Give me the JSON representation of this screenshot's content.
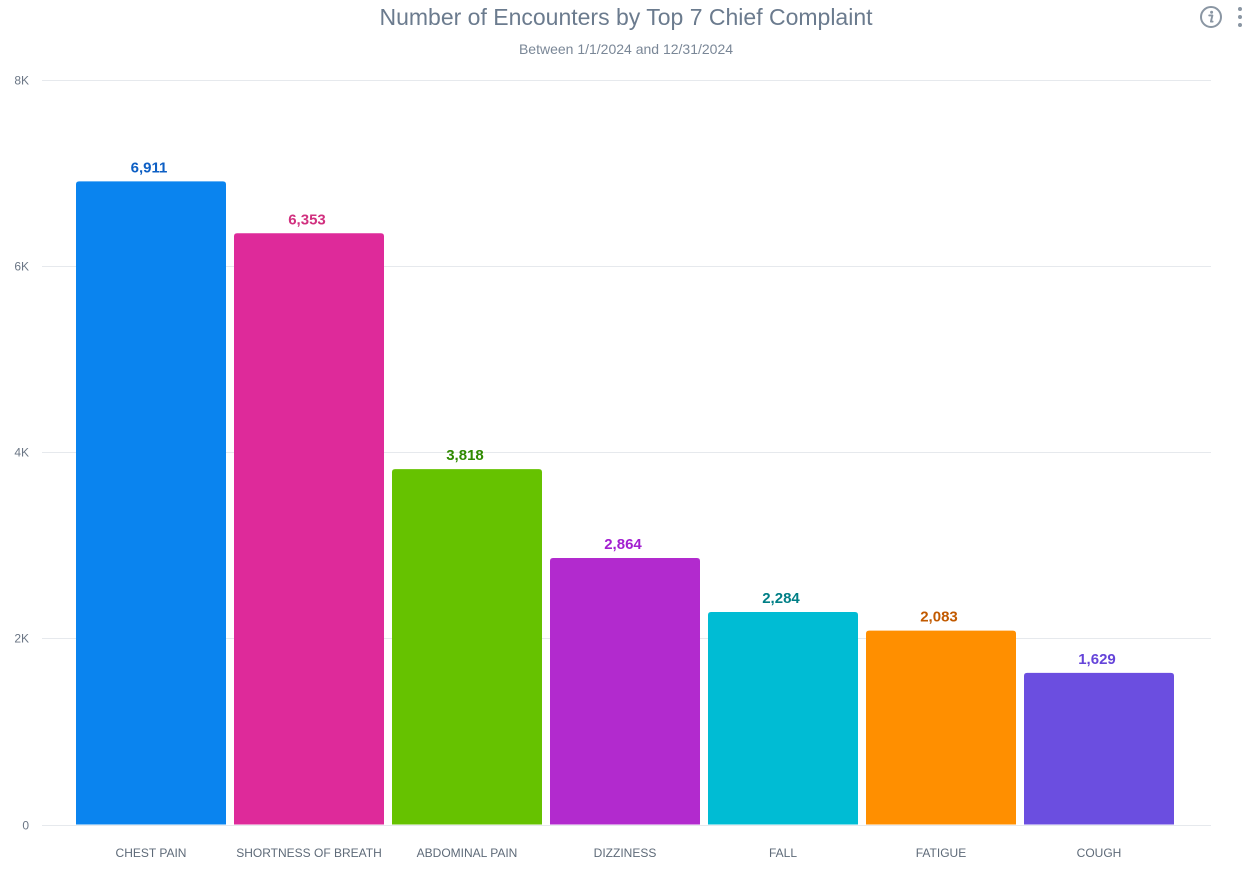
{
  "header": {
    "info_icon": "info-circle-icon",
    "more_icon": "vertical-ellipsis-icon"
  },
  "chart_data": {
    "type": "bar",
    "title": "Number of Encounters by Top 7 Chief Complaint",
    "subtitle": "Between 1/1/2024 and 12/31/2024",
    "xlabel": "",
    "ylabel": "",
    "ylim": [
      0,
      8000
    ],
    "grid": true,
    "y_ticks": [
      {
        "value": 0,
        "label": "0"
      },
      {
        "value": 2000,
        "label": "2K"
      },
      {
        "value": 4000,
        "label": "4K"
      },
      {
        "value": 6000,
        "label": "6K"
      },
      {
        "value": 8000,
        "label": "8K"
      }
    ],
    "categories": [
      "CHEST PAIN",
      "SHORTNESS OF BREATH",
      "ABDOMINAL PAIN",
      "DIZZINESS",
      "FALL",
      "FATIGUE",
      "COUGH"
    ],
    "values": [
      6911,
      6353,
      3818,
      2864,
      2284,
      2083,
      1629
    ],
    "data_labels": [
      "6,911",
      "6,353",
      "3,818",
      "2,864",
      "2,284",
      "2,083",
      "1,629"
    ],
    "colors": [
      "#0a84ef",
      "#de2a9a",
      "#66c200",
      "#b22ace",
      "#00bcd4",
      "#ff8f00",
      "#6b4ee0"
    ],
    "label_colors": [
      "#0d5fc4",
      "#d1307f",
      "#2f8a00",
      "#a21fd0",
      "#007f86",
      "#c25a00",
      "#6544d9"
    ]
  }
}
